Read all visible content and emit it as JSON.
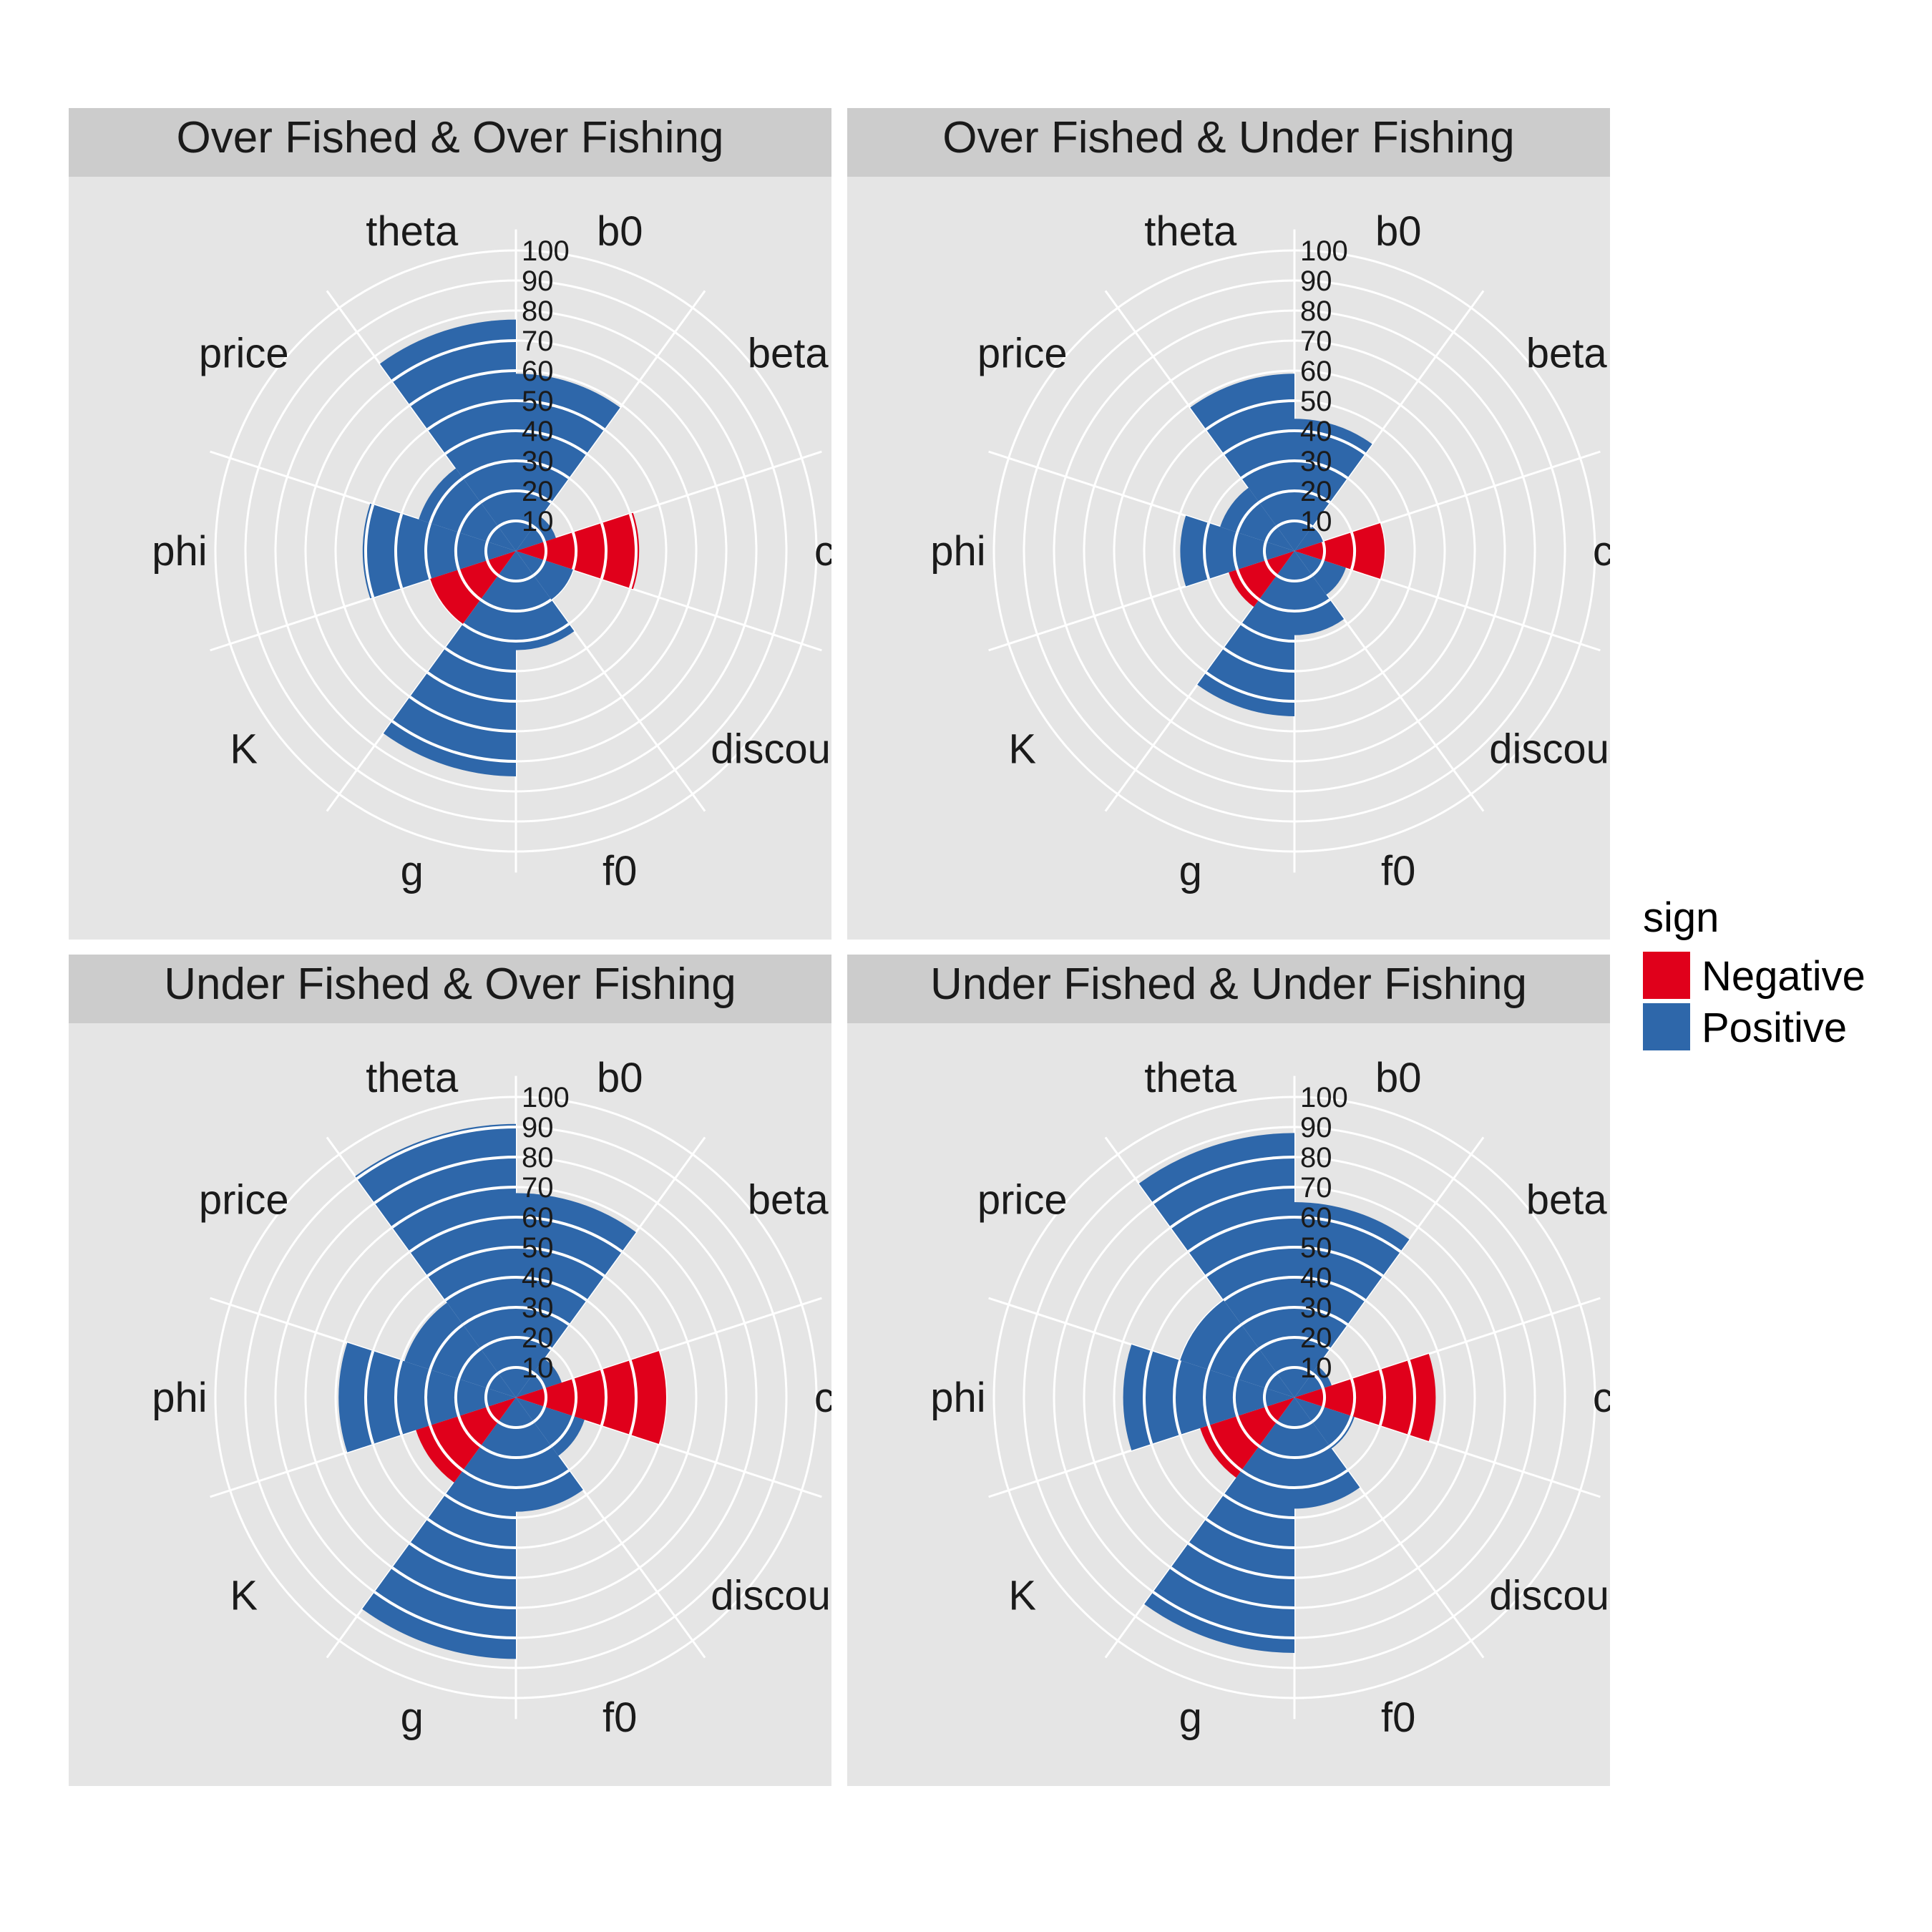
{
  "chart_data": {
    "type": "polar-bar",
    "facets": [
      {
        "title": "Over Fished & Over Fishing",
        "values": [
          {
            "category": "b0",
            "value": 59,
            "sign": "Positive"
          },
          {
            "category": "beta",
            "value": 14,
            "sign": "Positive"
          },
          {
            "category": "cost",
            "value": 41,
            "sign": "Negative"
          },
          {
            "category": "discount",
            "value": 20,
            "sign": "Positive"
          },
          {
            "category": "f0",
            "value": 33,
            "sign": "Positive"
          },
          {
            "category": "g",
            "value": 75,
            "sign": "Positive"
          },
          {
            "category": "K",
            "value": 30,
            "sign": "Negative"
          },
          {
            "category": "phi",
            "value": 51,
            "sign": "Positive"
          },
          {
            "category": "price",
            "value": 34,
            "sign": "Positive"
          },
          {
            "category": "theta",
            "value": 77,
            "sign": "Positive"
          }
        ]
      },
      {
        "title": "Over Fished & Under Fishing",
        "values": [
          {
            "category": "b0",
            "value": 44,
            "sign": "Positive"
          },
          {
            "category": "beta",
            "value": 10,
            "sign": "Positive"
          },
          {
            "category": "cost",
            "value": 30,
            "sign": "Negative"
          },
          {
            "category": "discount",
            "value": 18,
            "sign": "Positive"
          },
          {
            "category": "f0",
            "value": 28,
            "sign": "Positive"
          },
          {
            "category": "g",
            "value": 55,
            "sign": "Positive"
          },
          {
            "category": "K",
            "value": 23,
            "sign": "Negative"
          },
          {
            "category": "phi",
            "value": 38,
            "sign": "Positive"
          },
          {
            "category": "price",
            "value": 26,
            "sign": "Positive"
          },
          {
            "category": "theta",
            "value": 59,
            "sign": "Positive"
          }
        ]
      },
      {
        "title": "Under Fished & Over Fishing",
        "values": [
          {
            "category": "b0",
            "value": 68,
            "sign": "Positive"
          },
          {
            "category": "beta",
            "value": 16,
            "sign": "Positive"
          },
          {
            "category": "cost",
            "value": 50,
            "sign": "Negative"
          },
          {
            "category": "discount",
            "value": 24,
            "sign": "Positive"
          },
          {
            "category": "f0",
            "value": 38,
            "sign": "Positive"
          },
          {
            "category": "g",
            "value": 87,
            "sign": "Positive"
          },
          {
            "category": "K",
            "value": 35,
            "sign": "Negative"
          },
          {
            "category": "phi",
            "value": 59,
            "sign": "Positive"
          },
          {
            "category": "price",
            "value": 39,
            "sign": "Positive"
          },
          {
            "category": "theta",
            "value": 91,
            "sign": "Positive"
          }
        ]
      },
      {
        "title": "Under Fished & Under Fishing",
        "values": [
          {
            "category": "b0",
            "value": 65,
            "sign": "Positive"
          },
          {
            "category": "beta",
            "value": 13,
            "sign": "Positive"
          },
          {
            "category": "cost",
            "value": 47,
            "sign": "Negative"
          },
          {
            "category": "discount",
            "value": 21,
            "sign": "Positive"
          },
          {
            "category": "f0",
            "value": 37,
            "sign": "Positive"
          },
          {
            "category": "g",
            "value": 85,
            "sign": "Positive"
          },
          {
            "category": "K",
            "value": 33,
            "sign": "Negative"
          },
          {
            "category": "phi",
            "value": 57,
            "sign": "Positive"
          },
          {
            "category": "price",
            "value": 40,
            "sign": "Positive"
          },
          {
            "category": "theta",
            "value": 88,
            "sign": "Positive"
          }
        ]
      }
    ],
    "categories": [
      "b0",
      "beta",
      "cost",
      "discount",
      "f0",
      "g",
      "K",
      "phi",
      "price",
      "theta"
    ],
    "radial_ticks": [
      10,
      20,
      30,
      40,
      50,
      60,
      70,
      80,
      90,
      100
    ],
    "rlim": [
      0,
      100
    ],
    "grid": true,
    "legend": {
      "title": "sign",
      "position": "right",
      "entries": [
        {
          "label": "Negative",
          "color": "#E0001B"
        },
        {
          "label": "Positive",
          "color": "#2E67AA"
        }
      ]
    },
    "colors": {
      "panel_background": "#E5E5E5",
      "strip_background": "#CCCCCC",
      "grid": "#FFFFFF",
      "Negative": "#E0001B",
      "Positive": "#2E67AA"
    }
  }
}
